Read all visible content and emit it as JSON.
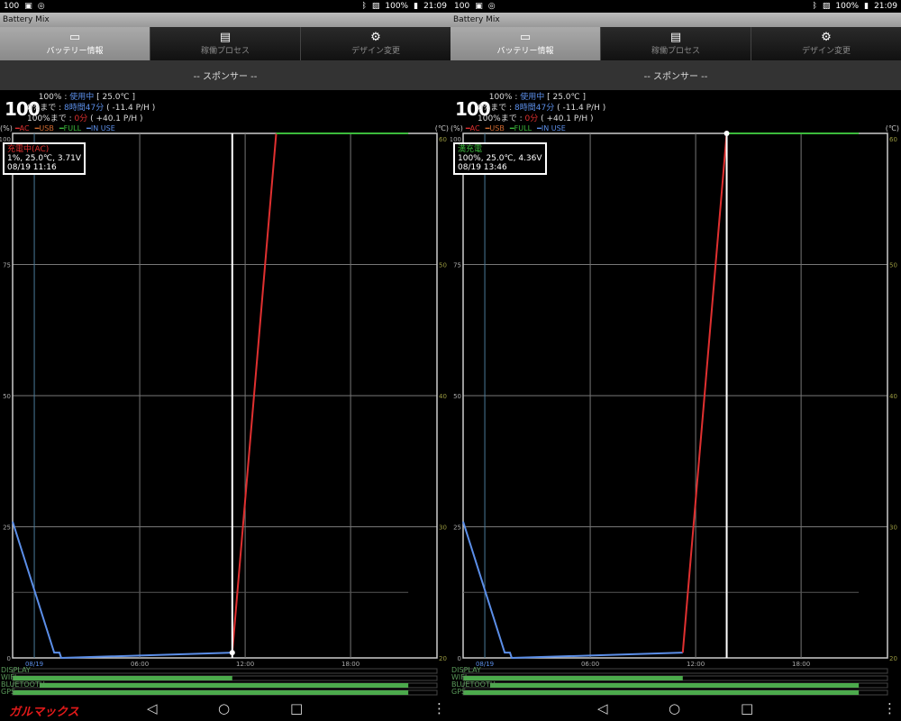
{
  "colors": {
    "ac": "#e03030",
    "usb": "#d06a30",
    "full": "#3cba3c",
    "in_use": "#5b8ee8",
    "temp": "#555555",
    "grid": "#888888"
  },
  "watermark": "ガルマックス",
  "panels": [
    {
      "status": {
        "left_text": "100",
        "battery": "100%",
        "time": "21:09"
      },
      "app_title": "Battery Mix",
      "tabs": [
        {
          "label": "バッテリー情報",
          "icon": "battery-icon",
          "active": true
        },
        {
          "label": "稼働プロセス",
          "icon": "list-icon",
          "active": false
        },
        {
          "label": "デザイン変更",
          "icon": "gear-icon",
          "active": false
        }
      ],
      "sponsor": "-- スポンサー --",
      "level": "100",
      "info": [
        {
          "label": "100% : ",
          "value": "使用中",
          "extra": " [ 25.0℃ ]",
          "cls": "blue"
        },
        {
          "label": "0%まで : ",
          "value": "8時間47分",
          "extra": " ( -11.4 P/H )",
          "cls": "blue"
        },
        {
          "label": "100%まで : ",
          "value": "0分",
          "extra": " ( +40.1 P/H )",
          "cls": "red"
        }
      ],
      "legend": {
        "unit": "(%)",
        "ac": "AC",
        "usb": "USB",
        "full": "FULL",
        "in_use": "IN USE",
        "temp_unit": "(℃)"
      },
      "tooltip": {
        "status": "充電中(AC)",
        "status_color": "#e03030",
        "detail": "1%, 25.0℃, 3.71V",
        "time": "08/19 11:16"
      },
      "cursor_time": "11:16",
      "usage_labels": [
        "DISPLAY",
        "WIFI",
        "BLUETOOTH",
        "GPS"
      ]
    },
    {
      "status": {
        "left_text": "100",
        "battery": "100%",
        "time": "21:09"
      },
      "app_title": "Battery Mix",
      "tabs": [
        {
          "label": "バッテリー情報",
          "icon": "battery-icon",
          "active": true
        },
        {
          "label": "稼働プロセス",
          "icon": "list-icon",
          "active": false
        },
        {
          "label": "デザイン変更",
          "icon": "gear-icon",
          "active": false
        }
      ],
      "sponsor": "-- スポンサー --",
      "level": "100",
      "info": [
        {
          "label": "100% : ",
          "value": "使用中",
          "extra": " [ 25.0℃ ]",
          "cls": "blue"
        },
        {
          "label": "0%まで : ",
          "value": "8時間47分",
          "extra": " ( -11.4 P/H )",
          "cls": "blue"
        },
        {
          "label": "100%まで : ",
          "value": "0分",
          "extra": " ( +40.1 P/H )",
          "cls": "red"
        }
      ],
      "legend": {
        "unit": "(%)",
        "ac": "AC",
        "usb": "USB",
        "full": "FULL",
        "in_use": "IN USE",
        "temp_unit": "(℃)"
      },
      "tooltip": {
        "status": "満充電",
        "status_color": "#3cba3c",
        "detail": "100%, 25.0℃, 4.36V",
        "time": "08/19 13:46"
      },
      "cursor_time": "13:46",
      "usage_labels": [
        "DISPLAY",
        "WIFI",
        "BLUETOOTH",
        "GPS"
      ]
    }
  ],
  "chart_data": {
    "type": "line",
    "x_ticks": [
      "08/19",
      "06:00",
      "12:00",
      "18:00"
    ],
    "y_ticks_left": [
      0,
      25,
      50,
      75,
      100
    ],
    "y_ticks_right": [
      20,
      30,
      40,
      50,
      60
    ],
    "ylim": [
      0,
      100
    ],
    "temp_lim": [
      20,
      60
    ],
    "xlim": [
      "08/18 22:46",
      "08/19 22:55"
    ],
    "grid": true,
    "series": [
      {
        "name": "IN USE",
        "color": "#5b8ee8",
        "points": [
          [
            "08/18 22:46",
            26
          ],
          [
            "08/19 01:08",
            1
          ],
          [
            "08/19 01:26",
            1
          ],
          [
            "08/19 01:32",
            0
          ],
          [
            "08/19 11:16",
            1
          ]
        ]
      },
      {
        "name": "AC",
        "color": "#e03030",
        "points": [
          [
            "08/19 11:16",
            1
          ],
          [
            "08/19 13:46",
            100
          ]
        ]
      },
      {
        "name": "FULL",
        "color": "#3cba3c",
        "points": [
          [
            "08/19 13:46",
            100
          ],
          [
            "08/19 21:17",
            100
          ]
        ]
      }
    ],
    "temperature": {
      "value": 25.0,
      "from": "08/18 22:46",
      "to": "08/19 21:17"
    },
    "usage": {
      "DISPLAY": [],
      "WIFI": [
        [
          "08/18 22:47",
          "08/19 11:16"
        ]
      ],
      "BLUETOOTH": [
        [
          "08/19 00:18",
          "08/19 21:17"
        ]
      ],
      "GPS": [
        [
          "08/18 22:47",
          "08/19 21:17"
        ]
      ]
    }
  }
}
